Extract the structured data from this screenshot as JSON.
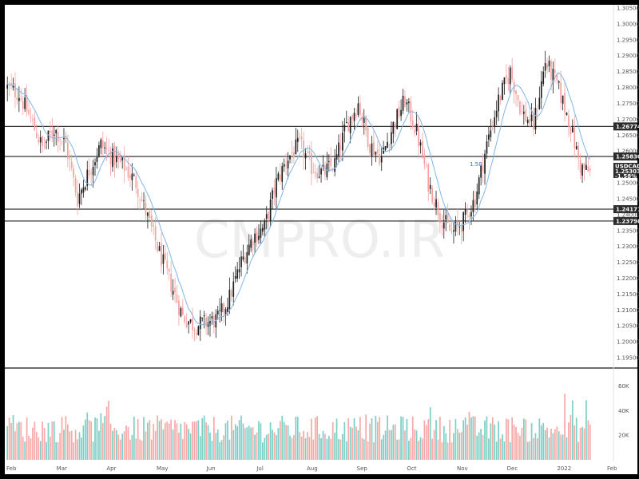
{
  "chart_data": {
    "type": "candlestick",
    "symbol": "USDCAD",
    "watermark": "CMPRO.IR",
    "last_price": "1.25303",
    "change": "-1.58%",
    "inline_label": "1.58",
    "ylim": [
      1.1925,
      1.3055
    ],
    "y_ticks": [
      "1.30500",
      "1.30000",
      "1.29500",
      "1.29000",
      "1.28500",
      "1.28000",
      "1.27500",
      "1.27000",
      "1.26500",
      "1.26000",
      "1.25500",
      "1.25000",
      "1.24500",
      "1.24000",
      "1.23500",
      "1.23000",
      "1.22500",
      "1.22000",
      "1.21500",
      "1.21000",
      "1.20500",
      "1.20000",
      "1.19500"
    ],
    "levels": [
      {
        "label": "1.26774",
        "value": 1.26774
      },
      {
        "label": "1.25830",
        "value": 1.2583
      },
      {
        "label": "1.24171",
        "value": 1.24171
      },
      {
        "label": "1.23798",
        "value": 1.23798
      }
    ],
    "x_labels": [
      "Feb",
      "Mar",
      "Apr",
      "May",
      "Jun",
      "Jul",
      "Aug",
      "Sep",
      "Oct",
      "Nov",
      "Dec",
      "2022",
      "Feb"
    ],
    "volume_ticks": [
      "60K",
      "40K",
      "20K"
    ],
    "volume_ylim": [
      0,
      70000
    ],
    "anchors": [
      [
        0,
        1.28
      ],
      [
        6,
        1.278
      ],
      [
        12,
        1.27
      ],
      [
        18,
        1.261
      ],
      [
        24,
        1.267
      ],
      [
        30,
        1.262
      ],
      [
        36,
        1.245
      ],
      [
        42,
        1.254
      ],
      [
        48,
        1.262
      ],
      [
        54,
        1.258
      ],
      [
        60,
        1.255
      ],
      [
        66,
        1.25
      ],
      [
        72,
        1.239
      ],
      [
        78,
        1.228
      ],
      [
        84,
        1.218
      ],
      [
        90,
        1.208
      ],
      [
        96,
        1.205
      ],
      [
        102,
        1.206
      ],
      [
        108,
        1.207
      ],
      [
        114,
        1.214
      ],
      [
        120,
        1.225
      ],
      [
        126,
        1.233
      ],
      [
        132,
        1.236
      ],
      [
        138,
        1.25
      ],
      [
        144,
        1.258
      ],
      [
        150,
        1.262
      ],
      [
        156,
        1.255
      ],
      [
        162,
        1.253
      ],
      [
        168,
        1.256
      ],
      [
        174,
        1.268
      ],
      [
        180,
        1.275
      ],
      [
        186,
        1.262
      ],
      [
        192,
        1.258
      ],
      [
        198,
        1.268
      ],
      [
        204,
        1.276
      ],
      [
        210,
        1.266
      ],
      [
        216,
        1.25
      ],
      [
        222,
        1.24
      ],
      [
        228,
        1.234
      ],
      [
        234,
        1.238
      ],
      [
        240,
        1.245
      ],
      [
        246,
        1.262
      ],
      [
        252,
        1.276
      ],
      [
        258,
        1.285
      ],
      [
        264,
        1.272
      ],
      [
        270,
        1.268
      ],
      [
        276,
        1.288
      ],
      [
        282,
        1.281
      ],
      [
        288,
        1.27
      ],
      [
        294,
        1.255
      ],
      [
        299,
        1.253
      ]
    ],
    "n_candles": 300,
    "bull_color": "#1f1f1f",
    "bear_color": "#f2a3a0",
    "ma_color": "#7fb7ea",
    "level_color": "#333333",
    "vol_up_color": "#7ccfc4",
    "vol_down_color": "#f5aaa7"
  }
}
